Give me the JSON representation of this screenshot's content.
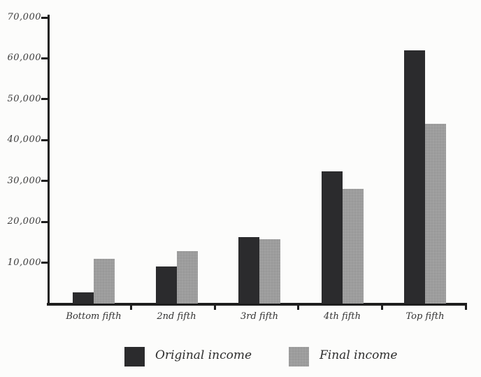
{
  "chart_data": {
    "type": "bar",
    "title": "",
    "xlabel": "",
    "ylabel": "",
    "categories": [
      "Bottom fifth",
      "2nd fifth",
      "3rd fifth",
      "4th fifth",
      "Top fifth"
    ],
    "series": [
      {
        "name": "Original income",
        "color": "#2b2b2d",
        "values": [
          2800,
          9000,
          16200,
          32400,
          62000
        ]
      },
      {
        "name": "Final income",
        "color": "#9d9d9d",
        "values": [
          11000,
          12800,
          15800,
          28000,
          44000
        ]
      }
    ],
    "ylim": [
      0,
      70000
    ],
    "yticks": [
      10000,
      20000,
      30000,
      40000,
      50000,
      60000,
      70000
    ],
    "ytick_labels": [
      "10,000",
      "20,000",
      "30,000",
      "40,000",
      "50,000",
      "60,000",
      "70,000"
    ],
    "grid": false,
    "legend_position": "bottom",
    "legend_labels": [
      "Original income",
      "Final income"
    ]
  },
  "colors": {
    "axis": "#1e1e1e",
    "label_text": "#3c3c3c",
    "background": "#fcfcfb"
  }
}
